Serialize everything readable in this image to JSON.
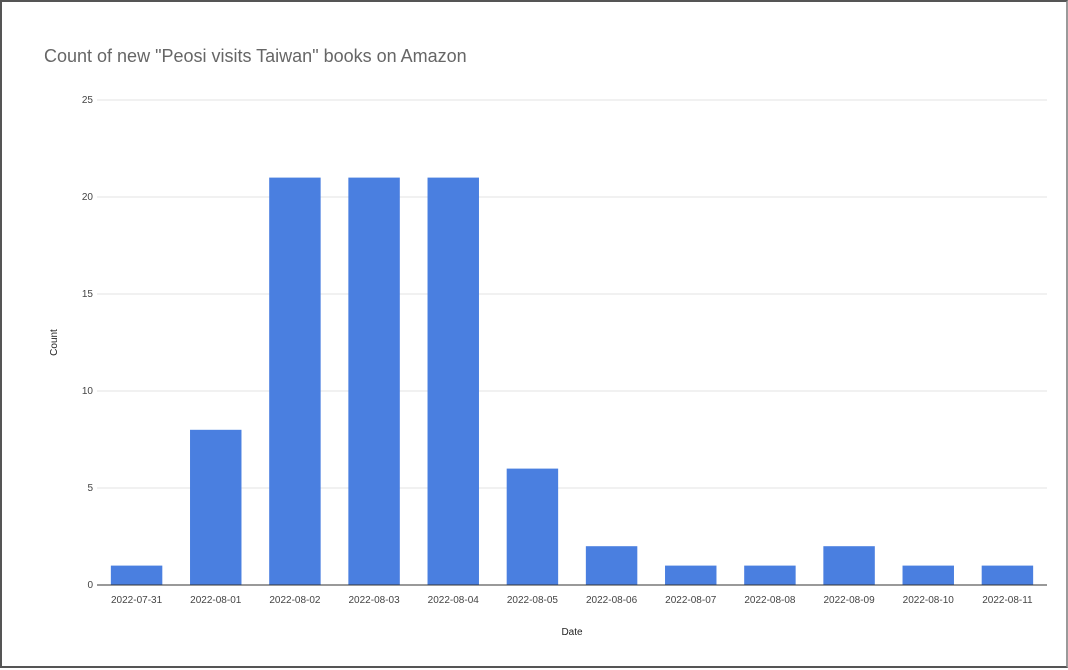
{
  "chart_data": {
    "type": "bar",
    "title": "Count of new \"Peosi visits Taiwan\" books on Amazon",
    "xlabel": "Date",
    "ylabel": "Count",
    "categories": [
      "2022-07-31",
      "2022-08-01",
      "2022-08-02",
      "2022-08-03",
      "2022-08-04",
      "2022-08-05",
      "2022-08-06",
      "2022-08-07",
      "2022-08-08",
      "2022-08-09",
      "2022-08-10",
      "2022-08-11"
    ],
    "values": [
      1,
      8,
      21,
      21,
      21,
      6,
      2,
      1,
      1,
      2,
      1,
      1
    ],
    "ylim": [
      0,
      25
    ],
    "yticks": [
      0,
      5,
      10,
      15,
      20,
      25
    ],
    "grid": true,
    "legend": "none",
    "bar_color": "#4a7fe0",
    "grid_color": "#e3e3e3",
    "axis_color": "#333333"
  }
}
